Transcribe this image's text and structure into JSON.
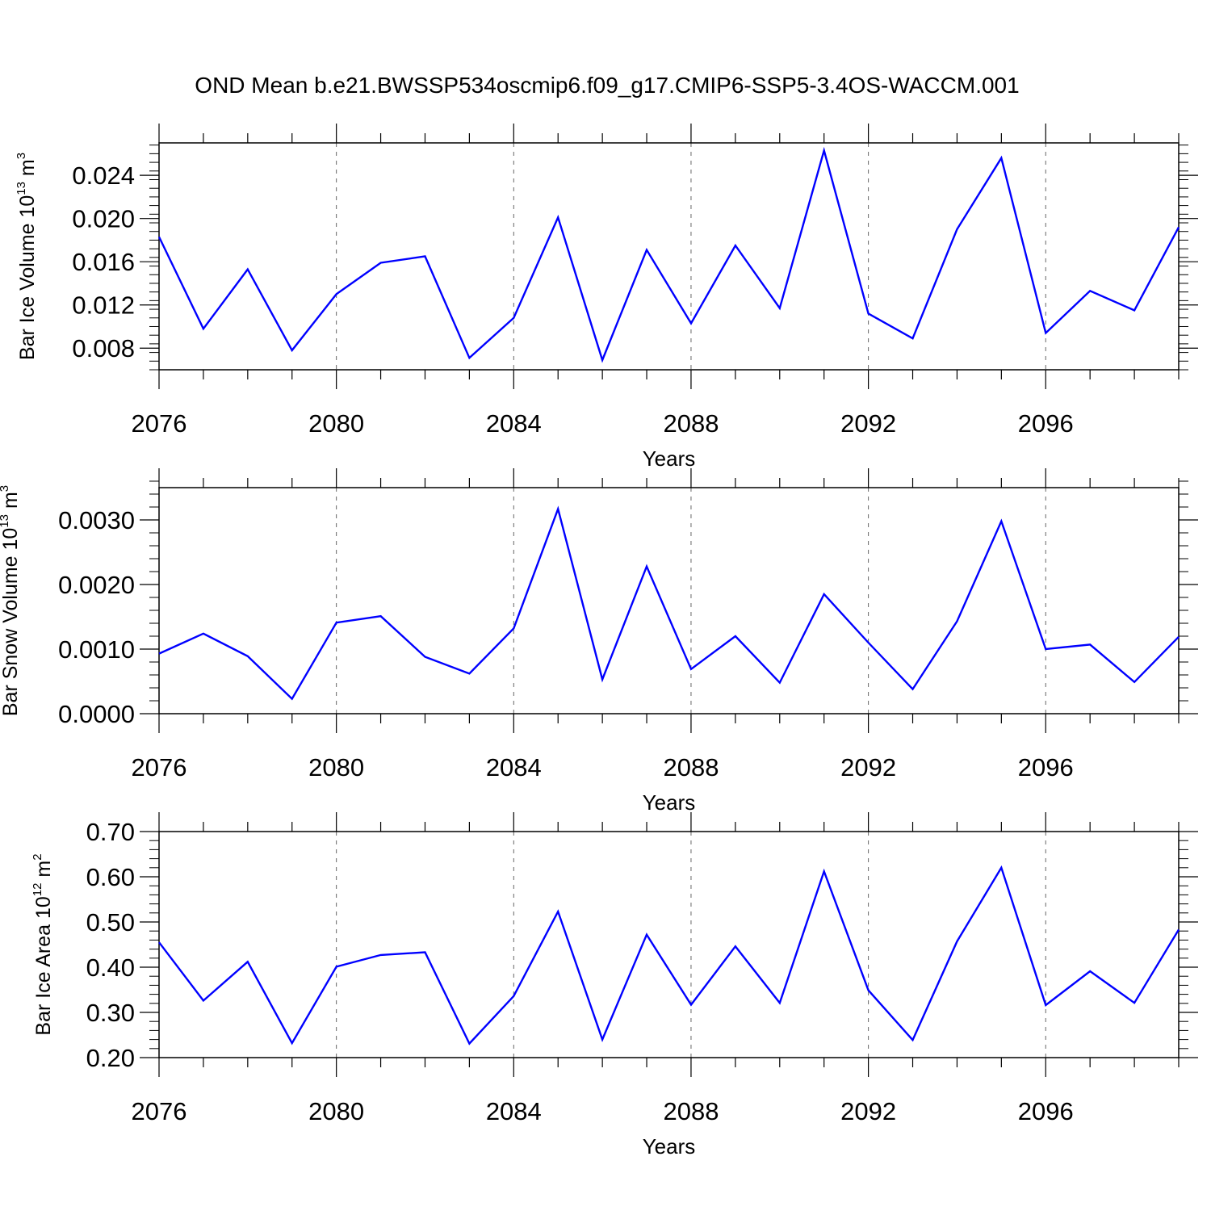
{
  "figure": {
    "title": "OND Mean b.e21.BWSSP534oscmip6.f09_g17.CMIP6-SSP5-3.4OS-WACCM.001",
    "line_color": "#0000ff",
    "frame_color": "#000000",
    "grid_color": "#666666"
  },
  "chart_data": [
    {
      "type": "line",
      "id": "ice-volume",
      "ylabel": "Bar Ice Volume 10",
      "ylabel_exp": "13",
      "ylabel_unit": " m",
      "ylabel_unit_exp": "3",
      "xlabel": "Years",
      "xlim": [
        2076,
        2099
      ],
      "ylim": [
        0.006,
        0.027
      ],
      "x_ticks": [
        2076,
        2080,
        2084,
        2088,
        2092,
        2096
      ],
      "x_tick_labels": [
        "2076",
        "2080",
        "2084",
        "2088",
        "2092",
        "2096"
      ],
      "y_ticks": [
        0.008,
        0.012,
        0.016,
        0.02,
        0.024
      ],
      "y_tick_labels": [
        "0.008",
        "0.012",
        "0.016",
        "0.020",
        "0.024"
      ],
      "y_minor_step": 0.0008,
      "grid": "vertical-dashed",
      "x": [
        2076,
        2077,
        2078,
        2079,
        2080,
        2081,
        2082,
        2083,
        2084,
        2085,
        2086,
        2087,
        2088,
        2089,
        2090,
        2091,
        2092,
        2093,
        2094,
        2095,
        2096,
        2097,
        2098,
        2099
      ],
      "values": [
        0.0183,
        0.0098,
        0.0153,
        0.0078,
        0.013,
        0.0159,
        0.0165,
        0.0071,
        0.0108,
        0.0201,
        0.0069,
        0.0171,
        0.0103,
        0.0175,
        0.0117,
        0.0263,
        0.0112,
        0.0089,
        0.019,
        0.0256,
        0.0094,
        0.0133,
        0.0115,
        0.0192
      ]
    },
    {
      "type": "line",
      "id": "snow-volume",
      "ylabel": "Bar Snow Volume 10",
      "ylabel_exp": "13",
      "ylabel_unit": " m",
      "ylabel_unit_exp": "3",
      "xlabel": "Years",
      "xlim": [
        2076,
        2099
      ],
      "ylim": [
        0.0,
        0.0035
      ],
      "x_ticks": [
        2076,
        2080,
        2084,
        2088,
        2092,
        2096
      ],
      "x_tick_labels": [
        "2076",
        "2080",
        "2084",
        "2088",
        "2092",
        "2096"
      ],
      "y_ticks": [
        0.0,
        0.001,
        0.002,
        0.003
      ],
      "y_tick_labels": [
        "0.0000",
        "0.0010",
        "0.0020",
        "0.0030"
      ],
      "y_minor_step": 0.0002,
      "grid": "vertical-dashed",
      "x": [
        2076,
        2077,
        2078,
        2079,
        2080,
        2081,
        2082,
        2083,
        2084,
        2085,
        2086,
        2087,
        2088,
        2089,
        2090,
        2091,
        2092,
        2093,
        2094,
        2095,
        2096,
        2097,
        2098,
        2099
      ],
      "values": [
        0.00093,
        0.00124,
        0.00089,
        0.00023,
        0.00141,
        0.00151,
        0.00088,
        0.00062,
        0.00132,
        0.00317,
        0.00053,
        0.00228,
        0.00069,
        0.0012,
        0.00048,
        0.00185,
        0.0011,
        0.00038,
        0.00143,
        0.00298,
        0.001,
        0.00107,
        0.00049,
        0.00119
      ]
    },
    {
      "type": "line",
      "id": "ice-area",
      "ylabel": "Bar Ice Area 10",
      "ylabel_exp": "12",
      "ylabel_unit": " m",
      "ylabel_unit_exp": "2",
      "xlabel": "Years",
      "xlim": [
        2076,
        2099
      ],
      "ylim": [
        0.2,
        0.7
      ],
      "x_ticks": [
        2076,
        2080,
        2084,
        2088,
        2092,
        2096
      ],
      "x_tick_labels": [
        "2076",
        "2080",
        "2084",
        "2088",
        "2092",
        "2096"
      ],
      "y_ticks": [
        0.2,
        0.3,
        0.4,
        0.5,
        0.6,
        0.7
      ],
      "y_tick_labels": [
        "0.20",
        "0.30",
        "0.40",
        "0.50",
        "0.60",
        "0.70"
      ],
      "y_minor_step": 0.02,
      "grid": "vertical-dashed",
      "x": [
        2076,
        2077,
        2078,
        2079,
        2080,
        2081,
        2082,
        2083,
        2084,
        2085,
        2086,
        2087,
        2088,
        2089,
        2090,
        2091,
        2092,
        2093,
        2094,
        2095,
        2096,
        2097,
        2098,
        2099
      ],
      "values": [
        0.455,
        0.326,
        0.412,
        0.232,
        0.401,
        0.427,
        0.433,
        0.231,
        0.336,
        0.523,
        0.24,
        0.472,
        0.317,
        0.446,
        0.321,
        0.612,
        0.349,
        0.239,
        0.457,
        0.62,
        0.316,
        0.391,
        0.321,
        0.483
      ]
    }
  ]
}
